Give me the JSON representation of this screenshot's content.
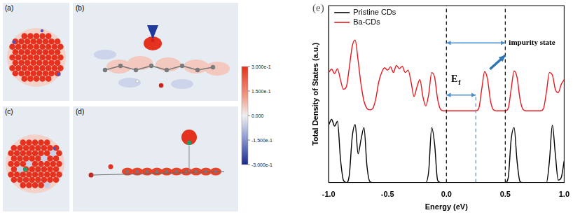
{
  "panels": [
    {
      "label": "(a)"
    },
    {
      "label": "(b)"
    },
    {
      "label": "(c)"
    },
    {
      "label": "(d)"
    }
  ],
  "colorbar": {
    "range": [
      -0.3,
      0.3
    ],
    "ticks": [
      {
        "value": 0.3,
        "label": "3.000e-1"
      },
      {
        "value": 0.15,
        "label": "1.500e-1"
      },
      {
        "value": 0,
        "label": "0.000"
      },
      {
        "value": -0.15,
        "label": "-1.500e-1"
      },
      {
        "value": -0.3,
        "label": "-3.000e-1"
      }
    ]
  },
  "chart_data": {
    "type": "line",
    "panel_label": "(e)",
    "xlabel": "Energy (eV)",
    "ylabel": "Total Density of States (a.u.)",
    "x": [
      -1,
      -0.975,
      -0.95,
      -0.925,
      -0.9,
      -0.875,
      -0.85,
      -0.825,
      -0.8,
      -0.775,
      -0.75,
      -0.725,
      -0.7,
      -0.675,
      -0.65,
      -0.625,
      -0.6,
      -0.575,
      -0.55,
      -0.525,
      -0.5,
      -0.475,
      -0.45,
      -0.425,
      -0.4,
      -0.375,
      -0.35,
      -0.325,
      -0.3,
      -0.275,
      -0.25,
      -0.225,
      -0.2,
      -0.175,
      -0.15,
      -0.125,
      -0.1,
      -0.075,
      -0.05,
      -0.025,
      0,
      0.025,
      0.05,
      0.075,
      0.1,
      0.125,
      0.15,
      0.175,
      0.2,
      0.225,
      0.25,
      0.275,
      0.3,
      0.325,
      0.35,
      0.375,
      0.4,
      0.425,
      0.45,
      0.475,
      0.5,
      0.525,
      0.55,
      0.575,
      0.6,
      0.625,
      0.65,
      0.675,
      0.7,
      0.725,
      0.75,
      0.775,
      0.8,
      0.825,
      0.85,
      0.875,
      0.9,
      0.925,
      0.95,
      0.975,
      1
    ],
    "series": [
      {
        "name": "Pristine CDs",
        "color": "#000000",
        "values": [
          1.2,
          1.32,
          1.18,
          1.28,
          0.5,
          0.05,
          0,
          0.15,
          0.95,
          1.21,
          0.6,
          0.9,
          1.15,
          0.35,
          0.02,
          0,
          0,
          0,
          0,
          0,
          0,
          0,
          0,
          0,
          0,
          0,
          0,
          0,
          0,
          0,
          0,
          0,
          0,
          0,
          0.25,
          1.15,
          0.8,
          0.05,
          0,
          0,
          0,
          0,
          0,
          0,
          0,
          0,
          0,
          0,
          0,
          0,
          0,
          0,
          0,
          0,
          0,
          0,
          0,
          0,
          0,
          0,
          0,
          0.1,
          0.9,
          1.15,
          0.45,
          0.02,
          0,
          0,
          0,
          0,
          0,
          0,
          0,
          0,
          0,
          0.45,
          1.2,
          0.6,
          0.05,
          0.1,
          0.45
        ]
      },
      {
        "name": "Ba-CDs",
        "color": "#e8191e",
        "values": [
          2.3,
          2.37,
          2.28,
          2.38,
          2.15,
          1.95,
          2.0,
          2.4,
          2.85,
          2.98,
          2.55,
          2.05,
          1.7,
          1.55,
          1.52,
          1.55,
          1.75,
          2.1,
          2.3,
          2.4,
          2.35,
          2.42,
          2.3,
          2.45,
          2.38,
          2.43,
          2.3,
          2.35,
          2.1,
          1.8,
          2.0,
          2.15,
          1.8,
          1.6,
          1.85,
          2.3,
          2.2,
          1.75,
          1.53,
          1.5,
          1.5,
          1.5,
          1.5,
          1.5,
          1.5,
          1.5,
          1.5,
          1.5,
          1.5,
          1.5,
          1.5,
          1.55,
          1.95,
          2.32,
          2.15,
          1.7,
          1.52,
          1.5,
          1.5,
          1.5,
          1.5,
          1.55,
          1.95,
          2.33,
          2.2,
          1.75,
          1.53,
          1.5,
          1.5,
          1.5,
          1.5,
          1.5,
          1.5,
          1.55,
          1.9,
          2.3,
          2.25,
          1.95,
          1.88,
          2.05,
          2.15
        ]
      }
    ],
    "xlim": [
      -1,
      1
    ],
    "xticks": [
      {
        "value": -1,
        "label": "-1.0"
      },
      {
        "value": -0.5,
        "label": "-0.5"
      },
      {
        "value": 0,
        "label": "0.0"
      },
      0.5,
      {
        "value": 1,
        "label": "1.0"
      }
    ],
    "ylim": [
      0,
      3.7
    ],
    "tick_labels": "x",
    "grid": false,
    "legend": "top left",
    "annotations": [
      {
        "kind": "vline",
        "x": 0,
        "color": "#000000",
        "line_style": "dashed"
      },
      {
        "kind": "vline",
        "x": 0.5,
        "color": "#000000",
        "line_style": "dashed"
      },
      {
        "kind": "vline",
        "x": 0.25,
        "y": [
          0,
          1.83
        ],
        "color": "#4a8fd0",
        "line_style": "dashed"
      },
      {
        "kind": "double_arrow",
        "x": [
          0,
          0.5
        ],
        "y": [
          2.92,
          2.92
        ],
        "color": "#4a8fd0"
      },
      {
        "kind": "double_arrow",
        "x": [
          0,
          0.25
        ],
        "y": [
          1.83,
          1.83
        ],
        "color": "#4a8fd0"
      },
      {
        "kind": "arrow",
        "x": [
          0.37,
          0.5
        ],
        "y": [
          2.37,
          2.66
        ],
        "color": "#2e75b6"
      },
      {
        "kind": "text",
        "text": "impurity state",
        "x": 0.53,
        "y": 2.92
      },
      {
        "kind": "text",
        "text": "E",
        "subscript": "f",
        "x": 0.04,
        "y": 2.1
      }
    ]
  }
}
